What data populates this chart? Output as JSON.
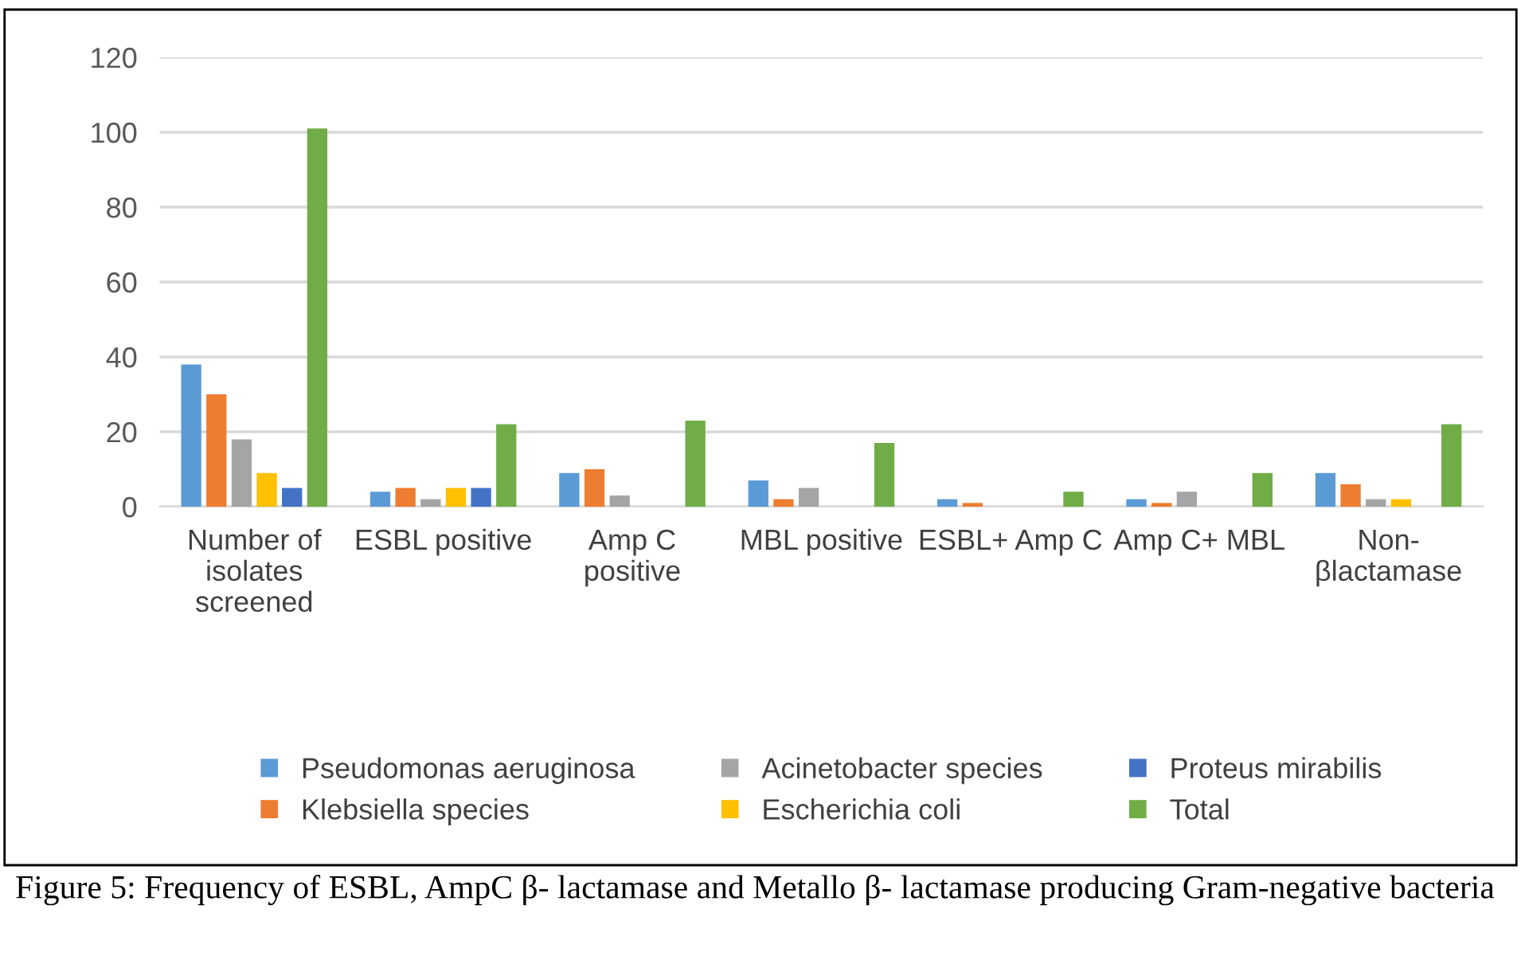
{
  "chart_data": {
    "type": "bar",
    "categories": [
      "Number of\nisolates\nscreened",
      "ESBL positive",
      "Amp C\npositive",
      "MBL positive",
      "ESBL+ Amp C",
      "Amp C+ MBL",
      "Non-\nβlactamase"
    ],
    "series": [
      {
        "name": "Pseudomonas aeruginosa",
        "color": "#5b9bd5",
        "values": [
          38,
          4,
          9,
          7,
          2,
          2,
          9
        ]
      },
      {
        "name": "Klebsiella species",
        "color": "#ed7d31",
        "values": [
          30,
          5,
          10,
          2,
          1,
          1,
          6
        ]
      },
      {
        "name": "Acinetobacter species",
        "color": "#a5a5a5",
        "values": [
          18,
          2,
          3,
          5,
          null,
          4,
          2
        ]
      },
      {
        "name": "Escherichia coli",
        "color": "#ffc000",
        "values": [
          9,
          5,
          null,
          null,
          null,
          null,
          2
        ]
      },
      {
        "name": "Proteus mirabilis",
        "color": "#4472c4",
        "values": [
          5,
          5,
          null,
          null,
          null,
          null,
          null
        ]
      },
      {
        "name": "Total",
        "color": "#70ad47",
        "values": [
          101,
          22,
          23,
          17,
          4,
          9,
          22
        ]
      }
    ],
    "ylim": [
      0,
      120
    ],
    "yticks": [
      0,
      20,
      40,
      60,
      80,
      100,
      120
    ],
    "grid": "y",
    "legend": "bottom",
    "annotations": [
      "Figure 5: Frequency of ESBL, AmpC β- lactamase and Metallo β- lactamase producing Gram-negative bacteria"
    ]
  }
}
